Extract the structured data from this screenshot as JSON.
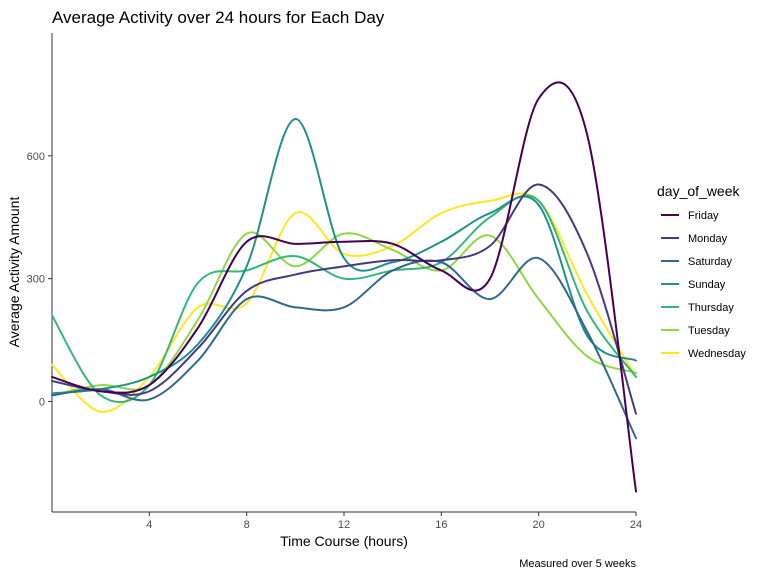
{
  "chart_data": {
    "type": "line",
    "title": "Average Activity over 24 hours for Each Day",
    "xlabel": "Time Course (hours)",
    "ylabel": "Average Activity Amount",
    "caption": "Measured over 5 weeks",
    "legend_title": "day_of_week",
    "legend_position": "right",
    "grid": false,
    "xlim": [
      0,
      24
    ],
    "ylim": [
      -270,
      900
    ],
    "x_ticks": [
      4,
      8,
      12,
      16,
      20,
      24
    ],
    "x_tick_labels": [
      "4",
      "8",
      "12",
      "16",
      "20",
      "24"
    ],
    "y_ticks": [
      0,
      300,
      600
    ],
    "y_tick_labels": [
      "0",
      "300",
      "600"
    ],
    "x": [
      0,
      2,
      4,
      6,
      8,
      10,
      12,
      14,
      16,
      18,
      20,
      22,
      24
    ],
    "series": [
      {
        "name": "Friday",
        "color": "#440154",
        "values": [
          60,
          25,
          40,
          180,
          390,
          385,
          390,
          385,
          320,
          300,
          740,
          650,
          -220
        ]
      },
      {
        "name": "Monday",
        "color": "#443A83",
        "values": [
          50,
          25,
          25,
          130,
          270,
          310,
          330,
          345,
          345,
          380,
          530,
          360,
          -30
        ]
      },
      {
        "name": "Saturday",
        "color": "#31688E",
        "values": [
          15,
          30,
          5,
          100,
          250,
          230,
          230,
          320,
          340,
          250,
          350,
          170,
          -90
        ]
      },
      {
        "name": "Sunday",
        "color": "#21908C",
        "values": [
          20,
          30,
          60,
          140,
          330,
          690,
          350,
          340,
          390,
          460,
          480,
          160,
          100
        ]
      },
      {
        "name": "Thursday",
        "color": "#35B779",
        "values": [
          210,
          15,
          40,
          290,
          320,
          355,
          300,
          320,
          340,
          450,
          490,
          220,
          60
        ]
      },
      {
        "name": "Tuesday",
        "color": "#8FD744",
        "values": [
          15,
          40,
          40,
          200,
          410,
          330,
          410,
          370,
          320,
          405,
          250,
          110,
          70
        ]
      },
      {
        "name": "Wednesday",
        "color": "#FDE725",
        "values": [
          90,
          -25,
          60,
          230,
          240,
          460,
          360,
          380,
          460,
          490,
          490,
          260,
          60
        ]
      }
    ]
  }
}
